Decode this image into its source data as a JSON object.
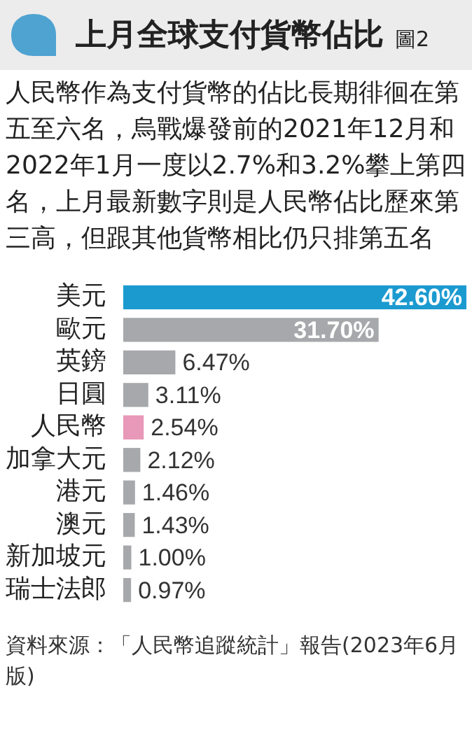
{
  "chart_data": {
    "type": "bar",
    "orientation": "horizontal",
    "title": "上月全球支付貨幣佔比",
    "subtitle": "人民幣作為支付貨幣的佔比長期徘徊在第五至六名，烏戰爆發前的2021年12月和2022年1月一度以2.7%和3.2%攀上第四名，上月最新數字則是人民幣佔比歷來第三高，但跟其他貨幣相比仍只排第五名",
    "categories": [
      "美元",
      "歐元",
      "英鎊",
      "日圓",
      "人民幣",
      "加拿大元",
      "港元",
      "澳元",
      "新加坡元",
      "瑞士法郎"
    ],
    "values": [
      42.6,
      31.7,
      6.47,
      3.11,
      2.54,
      2.12,
      1.46,
      1.43,
      1.0,
      0.97
    ],
    "colors": [
      "#1b9ad0",
      "#a6a8ab",
      "#a6a8ab",
      "#a6a8ab",
      "#e898b8",
      "#a6a8ab",
      "#a6a8ab",
      "#a6a8ab",
      "#a6a8ab",
      "#a6a8ab"
    ],
    "value_labels": [
      "42.60%",
      "31.70%",
      "6.47%",
      "3.11%",
      "2.54%",
      "2.12%",
      "1.46%",
      "1.43%",
      "1.00%",
      "0.97%"
    ],
    "xlim": [
      0,
      42.6
    ],
    "tick_labels": "y",
    "legend": false,
    "annotations": [
      "圖2",
      "資料來源：「人民幣追蹤統計」報告(2023年6月版)"
    ]
  }
}
